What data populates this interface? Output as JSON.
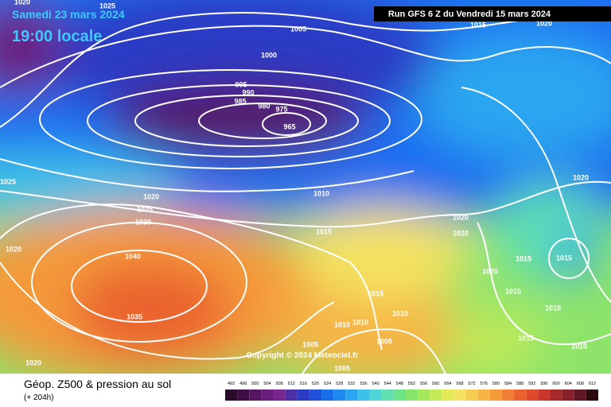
{
  "header": {
    "date": "Samedi 23 mars 2024",
    "time": "19:00 locale",
    "run": "Run GFS 6 Z du Vendredi 15 mars 2024"
  },
  "copyright": "Copyright © 2024 Meteociel.fr",
  "footer": {
    "title": "Géop. Z500 & pression au sol",
    "subtitle": "(+ 204h)"
  },
  "colorbar": {
    "ticks": [
      492,
      496,
      500,
      504,
      508,
      512,
      516,
      520,
      524,
      528,
      532,
      536,
      540,
      544,
      548,
      552,
      556,
      560,
      564,
      568,
      572,
      576,
      580,
      584,
      588,
      592,
      596,
      600,
      604,
      608,
      612
    ],
    "colors": [
      "#2a0a2a",
      "#3d0f45",
      "#541660",
      "#6a1d7a",
      "#7a2690",
      "#4b2ea8",
      "#2c3bc4",
      "#1f52d8",
      "#1a6ee8",
      "#1e8af0",
      "#2aa6f0",
      "#3cc0e8",
      "#4fd6d8",
      "#5ee0b0",
      "#6ee488",
      "#86e66a",
      "#a4e85a",
      "#c4ea56",
      "#e2ea58",
      "#f4e260",
      "#f6cc52",
      "#f6b444",
      "#f49a3a",
      "#f07e34",
      "#ea622e",
      "#de4a2c",
      "#c8362c",
      "#a82a2a",
      "#86202a",
      "#5e1824",
      "#2a0c10"
    ]
  },
  "isobar_labels": [
    "1020",
    "1025",
    "1005",
    "1000",
    "995",
    "990",
    "985",
    "980",
    "975",
    "965",
    "1025",
    "1020",
    "1025",
    "1030",
    "1020",
    "1010",
    "1015",
    "1020",
    "1020",
    "1040",
    "1035",
    "1015",
    "1010",
    "1010",
    "1010",
    "1005",
    "1005",
    "1005",
    "1020",
    "1020",
    "1015",
    "1015",
    "1020",
    "1015",
    "1015",
    "1015",
    "1010",
    "1015",
    "1020"
  ]
}
